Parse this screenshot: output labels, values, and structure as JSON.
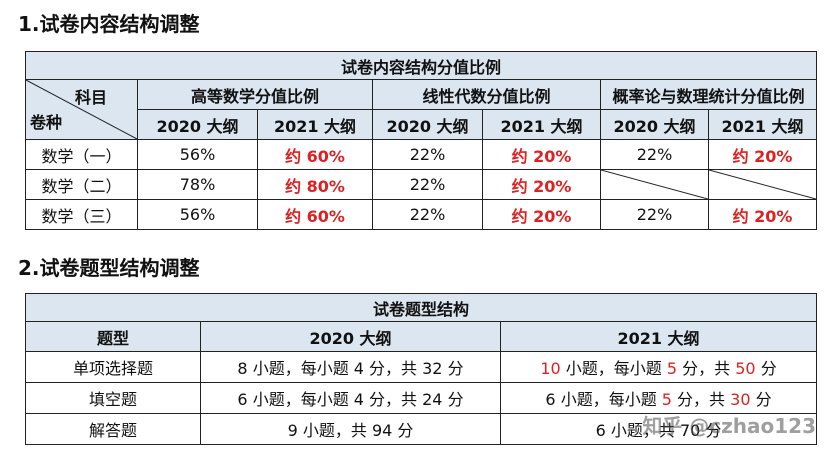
{
  "section1": {
    "heading": "1.试卷内容结构调整",
    "table_title": "试卷内容结构分值比例",
    "corner_top": "科目",
    "corner_bottom": "卷种",
    "groups": [
      "高等数学分值比例",
      "线性代数分值比例",
      "概率论与数理统计分值比例"
    ],
    "sub_2020": "2020 大纲",
    "sub_2021": "2021 大纲",
    "rows": [
      {
        "name": "数学（一）",
        "v": [
          "56%",
          "约 60%",
          "22%",
          "约 20%",
          "22%",
          "约 20%"
        ]
      },
      {
        "name": "数学（二）",
        "v": [
          "78%",
          "约 80%",
          "22%",
          "约 20%",
          "",
          ""
        ]
      },
      {
        "name": "数学（三）",
        "v": [
          "56%",
          "约 60%",
          "22%",
          "约 20%",
          "22%",
          "约 20%"
        ]
      }
    ]
  },
  "section2": {
    "heading": "2.试卷题型结构调整",
    "table_title": "试卷题型结构",
    "col_type": "题型",
    "col_2020": "2020 大纲",
    "col_2021": "2021 大纲",
    "rows": [
      {
        "type": "单项选择题",
        "old": "8 小题，每小题 4 分，共 32 分",
        "new": {
          "a": "10",
          "b": " 小题，每小题 ",
          "c": "5",
          "d": " 分，共 ",
          "e": "50",
          "f": " 分"
        }
      },
      {
        "type": "填空题",
        "old": "6 小题，每小题 4 分，共 24 分",
        "new": {
          "a": "6 小题，每小题 ",
          "b": "5",
          "c": " 分，共 ",
          "d": "30",
          "e": " 分"
        }
      },
      {
        "type": "解答题",
        "old": "9 小题，共 94 分",
        "new_text": "6 小题，共 70 分"
      }
    ]
  },
  "watermark": "知乎 @czhao123"
}
